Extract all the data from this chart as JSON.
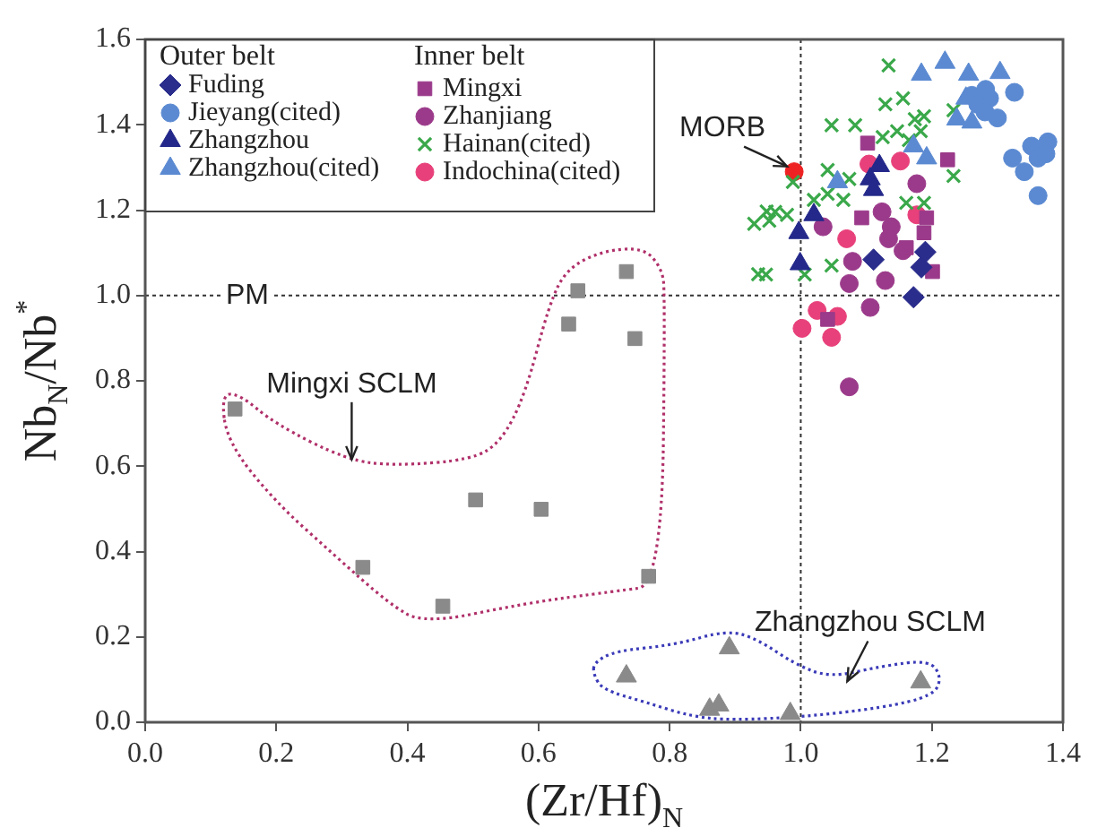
{
  "chart_data": {
    "type": "scatter",
    "xlabel": "(Zr/Hf)$_{N}$",
    "ylabel": "Nb$_{N}$/Nb$^{*}$",
    "xlim": [
      0,
      1.4
    ],
    "ylim": [
      0,
      1.6
    ],
    "xticks": [
      {
        "value": 0,
        "label": "0.0"
      },
      {
        "value": 0.2,
        "label": "0.2"
      },
      {
        "value": 0.4,
        "label": "0.4"
      },
      {
        "value": 0.6,
        "label": "0.6"
      },
      {
        "value": 0.8,
        "label": "0.8"
      },
      {
        "value": 1,
        "label": "1.0"
      },
      {
        "value": 1.2,
        "label": "1.2"
      },
      {
        "value": 1.4,
        "label": "1.4"
      }
    ],
    "yticks": [
      {
        "value": 0,
        "label": "0.0"
      },
      {
        "value": 0.2,
        "label": "0.2"
      },
      {
        "value": 0.4,
        "label": "0.4"
      },
      {
        "value": 0.6,
        "label": "0.6"
      },
      {
        "value": 0.8,
        "label": "0.8"
      },
      {
        "value": 1,
        "label": "1.0"
      },
      {
        "value": 1.2,
        "label": "1.2"
      },
      {
        "value": 1.4,
        "label": "1.4"
      },
      {
        "value": 1.6,
        "label": "1.6"
      }
    ],
    "grid": false,
    "legend": "top left",
    "ref_lines": [
      {
        "axis": "y",
        "value": 1,
        "label": "PM",
        "line_style": "dotted",
        "color": "#333333"
      },
      {
        "axis": "x",
        "value": 1,
        "line_style": "dotted",
        "color": "#333333"
      }
    ],
    "annotations": [
      "Outer belt",
      "Inner belt",
      {
        "text": "MORB",
        "x": 0.99,
        "y": 1.29
      },
      "Mingxi SCLM",
      "Zhangzhou SCLM"
    ],
    "series": [
      {
        "name": "Fuding",
        "color": "#2b2d8c",
        "marker": "diamond",
        "x": [
          1.111,
          1.172,
          1.184,
          1.19
        ],
        "values": [
          1.084,
          0.996,
          1.066,
          1.102
        ]
      },
      {
        "name": "Jieyang(cited)",
        "color": "#5b8ad2",
        "marker": "circle",
        "x": [
          1.282,
          1.261,
          1.288,
          1.27,
          1.3,
          1.281,
          1.326,
          1.323,
          1.341,
          1.352,
          1.362,
          1.377,
          1.374,
          1.362
        ],
        "values": [
          1.483,
          1.469,
          1.462,
          1.448,
          1.416,
          1.43,
          1.476,
          1.322,
          1.29,
          1.35,
          1.322,
          1.36,
          1.332,
          1.234
        ]
      },
      {
        "name": "Zhangzhou",
        "color": "#23288a",
        "marker": "triangle",
        "x": [
          1.12,
          1.106,
          1.111,
          0.997,
          0.999,
          1.02
        ],
        "values": [
          1.304,
          1.273,
          1.248,
          1.147,
          1.074,
          1.189
        ]
      },
      {
        "name": "Zhangzhou(cited)",
        "color": "#5b8ad2",
        "marker": "triangle",
        "x": [
          1.22,
          1.184,
          1.256,
          1.304,
          1.252,
          1.238,
          1.261,
          1.172,
          1.192,
          1.056
        ],
        "values": [
          1.546,
          1.518,
          1.518,
          1.522,
          1.462,
          1.413,
          1.406,
          1.35,
          1.322,
          1.266
        ]
      },
      {
        "name": "Mingxi",
        "color": "#9b3a8a",
        "marker": "square",
        "x": [
          1.102,
          1.224,
          1.093,
          1.192,
          1.188,
          1.201,
          1.041,
          1.161
        ],
        "values": [
          1.357,
          1.318,
          1.182,
          1.182,
          1.147,
          1.056,
          0.944,
          1.112
        ]
      },
      {
        "name": "Zhanjiang",
        "color": "#9b3a8a",
        "marker": "circle",
        "x": [
          1.177,
          1.034,
          1.124,
          1.138,
          1.079,
          1.074,
          1.129,
          1.106,
          1.156,
          1.134,
          1.074
        ],
        "values": [
          1.262,
          1.161,
          1.196,
          1.161,
          1.08,
          1.028,
          1.035,
          0.972,
          1.105,
          1.133,
          0.786
        ]
      },
      {
        "name": "Hainan(cited)",
        "color": "#3aa84a",
        "marker": "cross",
        "x": [
          1.134,
          1.129,
          1.156,
          1.174,
          1.188,
          1.233,
          1.147,
          1.125,
          1.083,
          1.047,
          1.183,
          1.165,
          1.041,
          1.074,
          1.233,
          0.988,
          0.961,
          0.952,
          0.979,
          1.02,
          1.041,
          0.947,
          1.006,
          1.047,
          1.161,
          1.188,
          1.065,
          0.929,
          0.948,
          0.935
        ],
        "values": [
          1.539,
          1.448,
          1.462,
          1.413,
          1.42,
          1.434,
          1.385,
          1.371,
          1.399,
          1.399,
          1.385,
          1.364,
          1.294,
          1.273,
          1.28,
          1.266,
          1.196,
          1.175,
          1.189,
          1.224,
          1.238,
          1.049,
          1.049,
          1.07,
          1.217,
          1.217,
          1.224,
          1.168,
          1.197,
          1.05
        ]
      },
      {
        "name": "Indochina(cited)",
        "color": "#e8407a",
        "marker": "circle",
        "x": [
          1.104,
          1.152,
          1.07,
          1.177,
          1.002,
          1.047,
          1.025,
          1.056
        ],
        "values": [
          1.308,
          1.315,
          1.133,
          1.189,
          0.923,
          0.902,
          0.965,
          0.951
        ]
      },
      {
        "color": "#8a8a8a",
        "marker": "square",
        "x": [
          0.137,
          0.332,
          0.454,
          0.504,
          0.604,
          0.646,
          0.66,
          0.734,
          0.747,
          0.768
        ],
        "values": [
          0.734,
          0.363,
          0.272,
          0.521,
          0.499,
          0.933,
          1.011,
          1.056,
          0.899,
          0.342
        ]
      },
      {
        "color": "#8a8a8a",
        "marker": "triangle",
        "x": [
          0.734,
          0.891,
          0.861,
          0.875,
          0.984,
          1.183
        ],
        "values": [
          0.108,
          0.174,
          0.03,
          0.04,
          0.02,
          0.094
        ]
      },
      {
        "color": "#ee2222",
        "marker": "circle",
        "x": [
          0.99
        ],
        "values": [
          1.29
        ]
      }
    ]
  }
}
